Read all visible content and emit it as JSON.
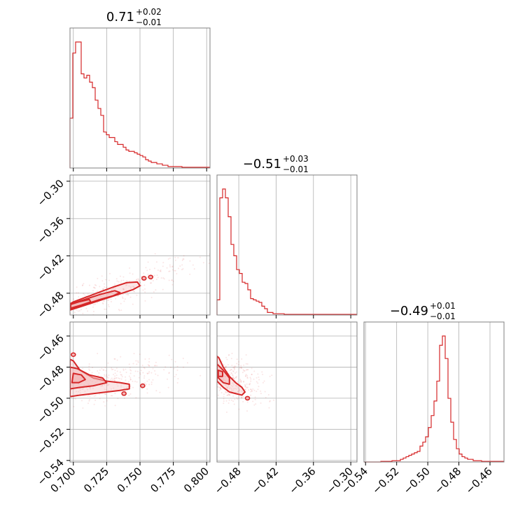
{
  "colors": {
    "accent": "#d62728",
    "contour_fill": "#f3b6b7",
    "grid": "#b0b0b0",
    "frame": "#808080"
  },
  "chart_data": {
    "type": "corner",
    "grid": true,
    "titles": [
      {
        "value": "0.71",
        "plus": "+0.02",
        "minus": "−0.01"
      },
      {
        "value": "−0.51",
        "plus": "+0.03",
        "minus": "−0.01"
      },
      {
        "value": "−0.49",
        "plus": "+0.01",
        "minus": "−0.01"
      }
    ],
    "params": [
      {
        "range": [
          0.6975,
          0.8025
        ],
        "ticks": [
          0.7,
          0.725,
          0.75,
          0.775,
          0.8
        ],
        "tick_labels": [
          "0.700",
          "0.725",
          "0.750",
          "0.775",
          "0.800"
        ],
        "hist_edges_start": 0.6975,
        "hist_bin_width": 0.0021,
        "hist_counts": [
          0.36,
          0.83,
          0.91,
          0.91,
          0.68,
          0.65,
          0.67,
          0.62,
          0.58,
          0.49,
          0.43,
          0.38,
          0.26,
          0.24,
          0.22,
          0.22,
          0.19,
          0.17,
          0.17,
          0.15,
          0.13,
          0.12,
          0.12,
          0.11,
          0.1,
          0.09,
          0.08,
          0.06,
          0.05,
          0.04,
          0.04,
          0.03,
          0.03,
          0.02,
          0.02,
          0.01,
          0.01,
          0.01,
          0.01,
          0.01,
          0.005,
          0.005,
          0.005,
          0.005,
          0.005,
          0.005,
          0.005,
          0.005,
          0.005,
          0.005
        ]
      },
      {
        "range": [
          -0.515,
          -0.29
        ],
        "ticks": [
          -0.48,
          -0.42,
          -0.36,
          -0.3
        ],
        "tick_labels": [
          "−0.48",
          "−0.42",
          "−0.36",
          "−0.30"
        ],
        "hist_edges_start": -0.515,
        "hist_bin_width": 0.0045,
        "hist_counts": [
          0.12,
          0.93,
          1.0,
          0.93,
          0.78,
          0.56,
          0.47,
          0.36,
          0.33,
          0.26,
          0.25,
          0.2,
          0.13,
          0.12,
          0.11,
          0.1,
          0.07,
          0.05,
          0.02,
          0.02,
          0.01,
          0.01,
          0.01,
          0.01,
          0.005,
          0.005,
          0.005,
          0.005,
          0.005,
          0.005,
          0.005,
          0.005,
          0.005,
          0.005,
          0.005,
          0.005,
          0.005,
          0.005,
          0.005,
          0.005,
          0.005,
          0.005,
          0.005,
          0.005,
          0.005,
          0.005,
          0.005,
          0.005,
          0.005,
          0.005
        ]
      },
      {
        "range": [
          -0.541,
          -0.451
        ],
        "ticks": [
          -0.54,
          -0.52,
          -0.5,
          -0.48,
          -0.46
        ],
        "tick_labels": [
          "−0.54",
          "−0.52",
          "−0.50",
          "−0.48",
          "−0.46"
        ],
        "hist_edges_start": -0.541,
        "hist_bin_width": 0.0018,
        "hist_counts": [
          0.0,
          0.0,
          0.0,
          0.0,
          0.0,
          0.0,
          0.005,
          0.005,
          0.005,
          0.005,
          0.01,
          0.01,
          0.01,
          0.02,
          0.03,
          0.04,
          0.05,
          0.06,
          0.07,
          0.08,
          0.12,
          0.15,
          0.19,
          0.26,
          0.35,
          0.46,
          0.61,
          0.88,
          0.95,
          0.78,
          0.48,
          0.3,
          0.17,
          0.1,
          0.06,
          0.04,
          0.03,
          0.02,
          0.02,
          0.01,
          0.01,
          0.01,
          0.005,
          0.005,
          0.005,
          0.005,
          0.005,
          0.005,
          0.005,
          0.005
        ]
      }
    ],
    "pairs": [
      {
        "x_param": 0,
        "y_param": 1,
        "contours": [
          {
            "level": "outer",
            "points": [
              [
                0.6975,
                -0.507
              ],
              [
                0.705,
                -0.502
              ],
              [
                0.715,
                -0.495
              ],
              [
                0.725,
                -0.488
              ],
              [
                0.735,
                -0.481
              ],
              [
                0.745,
                -0.474
              ],
              [
                0.75,
                -0.468
              ],
              [
                0.748,
                -0.462
              ],
              [
                0.74,
                -0.463
              ],
              [
                0.73,
                -0.47
              ],
              [
                0.72,
                -0.478
              ],
              [
                0.71,
                -0.486
              ],
              [
                0.7,
                -0.494
              ],
              [
                0.6975,
                -0.497
              ]
            ]
          },
          {
            "level": "mid",
            "points": [
              [
                0.6975,
                -0.505
              ],
              [
                0.71,
                -0.497
              ],
              [
                0.72,
                -0.49
              ],
              [
                0.73,
                -0.484
              ],
              [
                0.735,
                -0.479
              ],
              [
                0.731,
                -0.476
              ],
              [
                0.72,
                -0.482
              ],
              [
                0.71,
                -0.489
              ],
              [
                0.7,
                -0.496
              ],
              [
                0.6975,
                -0.499
              ]
            ]
          },
          {
            "level": "inner",
            "points": [
              [
                0.698,
                -0.504
              ],
              [
                0.706,
                -0.499
              ],
              [
                0.713,
                -0.494
              ],
              [
                0.712,
                -0.49
              ],
              [
                0.704,
                -0.494
              ],
              [
                0.698,
                -0.498
              ]
            ]
          }
        ],
        "islands": [
          [
            0.753,
            -0.456
          ],
          [
            0.758,
            -0.454
          ]
        ]
      },
      {
        "x_param": 0,
        "y_param": 2,
        "contours": [
          {
            "level": "outer",
            "points": [
              [
                0.6975,
                -0.499
              ],
              [
                0.705,
                -0.498
              ],
              [
                0.715,
                -0.497
              ],
              [
                0.725,
                -0.496
              ],
              [
                0.735,
                -0.495
              ],
              [
                0.742,
                -0.494
              ],
              [
                0.742,
                -0.491
              ],
              [
                0.735,
                -0.49
              ],
              [
                0.725,
                -0.489
              ],
              [
                0.715,
                -0.487
              ],
              [
                0.705,
                -0.482
              ],
              [
                0.7,
                -0.476
              ],
              [
                0.6975,
                -0.475
              ]
            ]
          },
          {
            "level": "mid",
            "points": [
              [
                0.6975,
                -0.494
              ],
              [
                0.705,
                -0.493
              ],
              [
                0.715,
                -0.492
              ],
              [
                0.725,
                -0.49
              ],
              [
                0.722,
                -0.487
              ],
              [
                0.712,
                -0.485
              ],
              [
                0.703,
                -0.481
              ],
              [
                0.6975,
                -0.48
              ]
            ]
          },
          {
            "level": "inner",
            "points": [
              [
                0.699,
                -0.49
              ],
              [
                0.704,
                -0.49
              ],
              [
                0.709,
                -0.488
              ],
              [
                0.706,
                -0.485
              ],
              [
                0.7,
                -0.484
              ]
            ]
          }
        ],
        "islands": [
          [
            0.738,
            -0.497
          ],
          [
            0.752,
            -0.492
          ],
          [
            0.7,
            -0.472
          ]
        ]
      },
      {
        "x_param": 1,
        "y_param": 2,
        "contours": [
          {
            "level": "outer",
            "points": [
              [
                -0.515,
                -0.489
              ],
              [
                -0.505,
                -0.493
              ],
              [
                -0.495,
                -0.496
              ],
              [
                -0.485,
                -0.497
              ],
              [
                -0.475,
                -0.498
              ],
              [
                -0.47,
                -0.496
              ],
              [
                -0.475,
                -0.493
              ],
              [
                -0.485,
                -0.49
              ],
              [
                -0.495,
                -0.486
              ],
              [
                -0.505,
                -0.48
              ],
              [
                -0.512,
                -0.474
              ],
              [
                -0.515,
                -0.473
              ]
            ]
          },
          {
            "level": "mid",
            "points": [
              [
                -0.515,
                -0.486
              ],
              [
                -0.505,
                -0.49
              ],
              [
                -0.495,
                -0.491
              ],
              [
                -0.495,
                -0.487
              ],
              [
                -0.505,
                -0.482
              ],
              [
                -0.515,
                -0.478
              ]
            ]
          },
          {
            "level": "inner",
            "points": [
              [
                -0.513,
                -0.486
              ],
              [
                -0.506,
                -0.486
              ],
              [
                -0.506,
                -0.483
              ],
              [
                -0.513,
                -0.482
              ]
            ]
          }
        ],
        "islands": [
          [
            -0.466,
            -0.5
          ]
        ]
      }
    ]
  }
}
